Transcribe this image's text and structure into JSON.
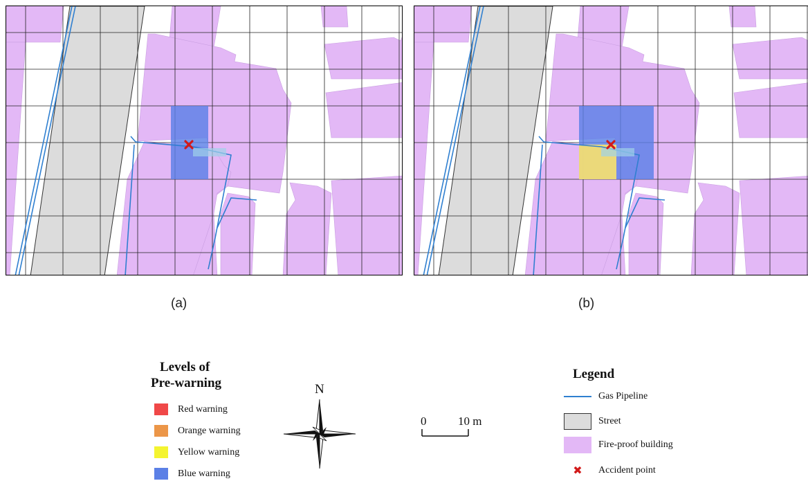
{
  "panels": [
    {
      "id": "a",
      "caption": "(a)",
      "warning_zones": [
        {
          "level": "blue"
        }
      ]
    },
    {
      "id": "b",
      "caption": "(b)",
      "warning_zones": [
        {
          "level": "blue"
        },
        {
          "level": "yellow"
        }
      ]
    }
  ],
  "prewarning_legend": {
    "title_line1": "Levels of",
    "title_line2": "Pre-warning",
    "items": [
      {
        "label": "Red warning",
        "color": "#f04848"
      },
      {
        "label": "Orange warning",
        "color": "#ec9648"
      },
      {
        "label": "Yellow warning",
        "color": "#f4f430"
      },
      {
        "label": "Blue warning",
        "color": "#5b80e6"
      }
    ]
  },
  "compass": {
    "north_label": "N"
  },
  "scale_bar": {
    "start_label": "0",
    "end_label": "10",
    "unit": "m"
  },
  "legend": {
    "title": "Legend",
    "items": [
      {
        "label": "Gas Pipeline",
        "symbol": "line",
        "color": "#2f7fd0"
      },
      {
        "label": "Street",
        "symbol": "box",
        "color": "#dcdcdc"
      },
      {
        "label": "Fire-proof building",
        "symbol": "box",
        "color": "#e3b8f6"
      },
      {
        "label": "Accident point",
        "symbol": "cross",
        "color": "#d21a1a"
      }
    ]
  },
  "colors": {
    "building": "#e3b8f6",
    "street": "#dcdcdc",
    "pipeline": "#2f7fd0",
    "grid": "#222222",
    "blue_zone": "#5b80e6",
    "yellow_zone": "#f1dd74",
    "accident": "#d21a1a"
  }
}
